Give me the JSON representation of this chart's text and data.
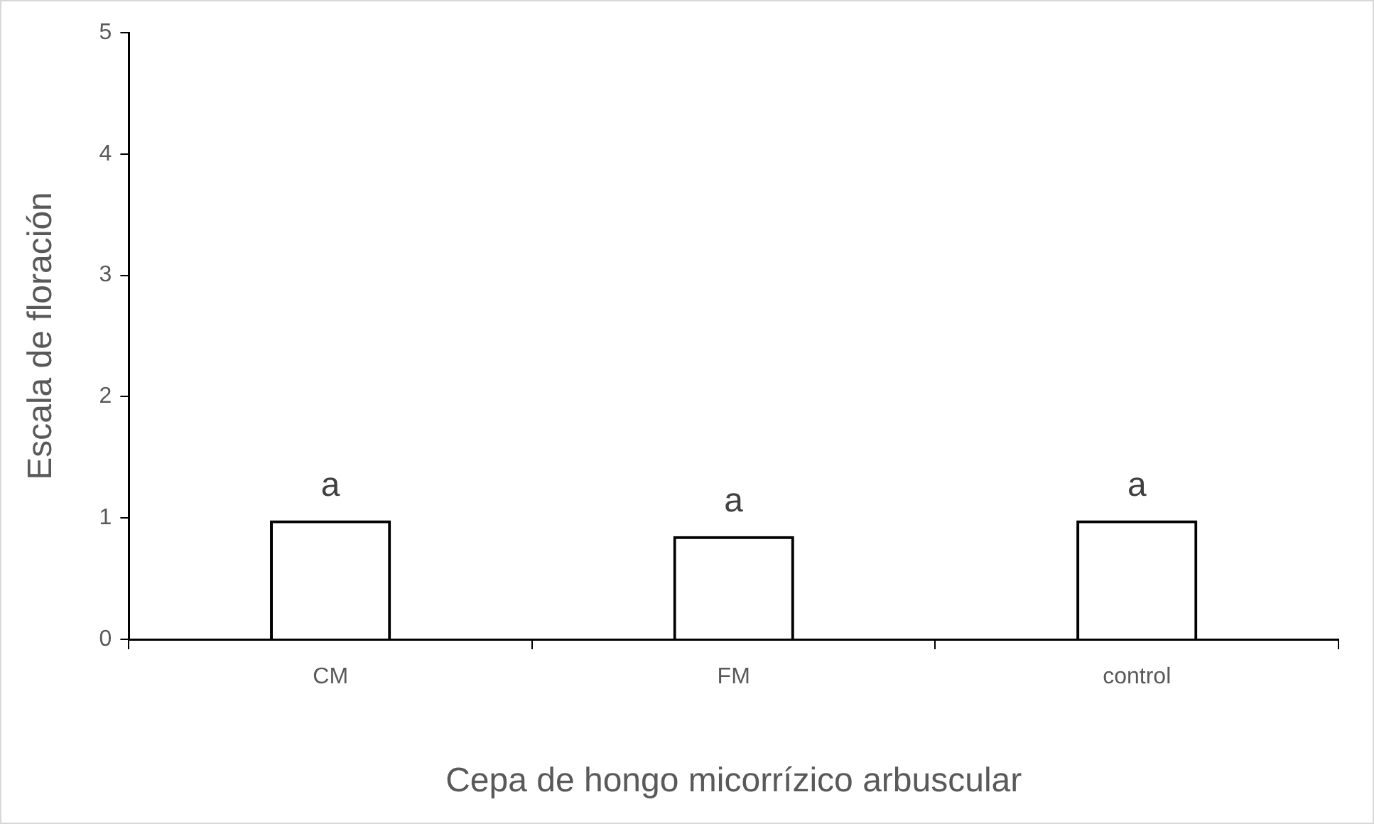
{
  "chart_data": {
    "type": "bar",
    "xlabel": "Cepa de hongo micorrízico arbuscular",
    "ylabel": "Escala de floración",
    "categories": [
      "CM",
      "FM",
      "control"
    ],
    "values": [
      0.98,
      0.85,
      0.98
    ],
    "color": "#000000",
    "ylim": [
      0,
      5
    ],
    "yticks": [
      0,
      1,
      2,
      3,
      4,
      5
    ],
    "grid": false,
    "legend": false,
    "annotations": [
      {
        "text": "a",
        "x": "CM",
        "y": 0.98
      },
      {
        "text": "a",
        "x": "FM",
        "y": 0.85
      },
      {
        "text": "a",
        "x": "control",
        "y": 0.98
      }
    ]
  }
}
